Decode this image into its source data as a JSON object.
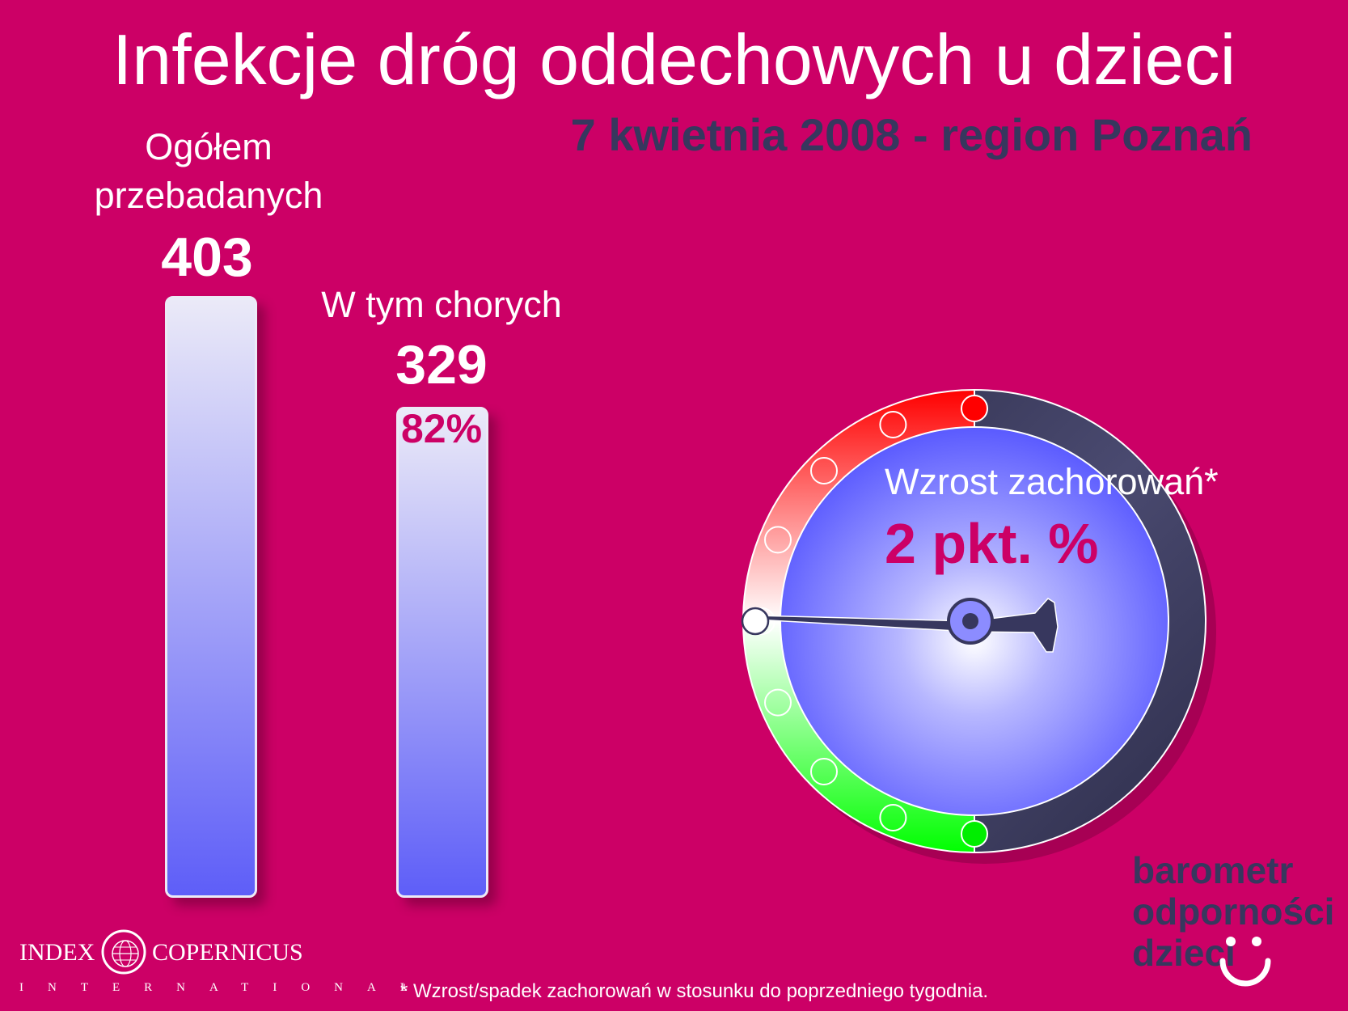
{
  "title": "Infekcje dróg oddechowych u dzieci",
  "subtitle": "7 kwietnia 2008 - region Poznań",
  "chart_data": [
    {
      "type": "bar",
      "categories": [
        "Ogółem przebadanych",
        "W tym chorych"
      ],
      "values": [
        403,
        329
      ],
      "data_labels": [
        "403",
        "329"
      ],
      "percent_label": "82%",
      "ylim": [
        0,
        403
      ],
      "grid": false,
      "colors": {
        "bar_top": "#ebeaf8",
        "bar_bottom": "#5e5ef8",
        "background": "#cc0066"
      }
    },
    {
      "type": "gauge",
      "label": "Wzrost zachorowań*",
      "value_label": "2 pkt. %",
      "value": 2,
      "scale_marks": 9,
      "colors": {
        "rise": "#ff0000",
        "neutral": "#ffffff",
        "fall": "#00ff00",
        "dial": "#6b6bff",
        "bezel": "#3a3a5c",
        "needle": "#37375e"
      }
    }
  ],
  "labels": {
    "total_line1": "Ogółem",
    "total_line2": "przebadanych",
    "sick": "W tym chorych"
  },
  "brand": {
    "line1": "barometr",
    "line2": "odporności",
    "line3": "dzieci"
  },
  "logo": {
    "left": "INDEX",
    "right": "COPERNICUS",
    "sub": "INTERNATIONAL"
  },
  "footnote": "* Wzrost/spadek zachorowań w stosunku do poprzedniego tygodnia."
}
